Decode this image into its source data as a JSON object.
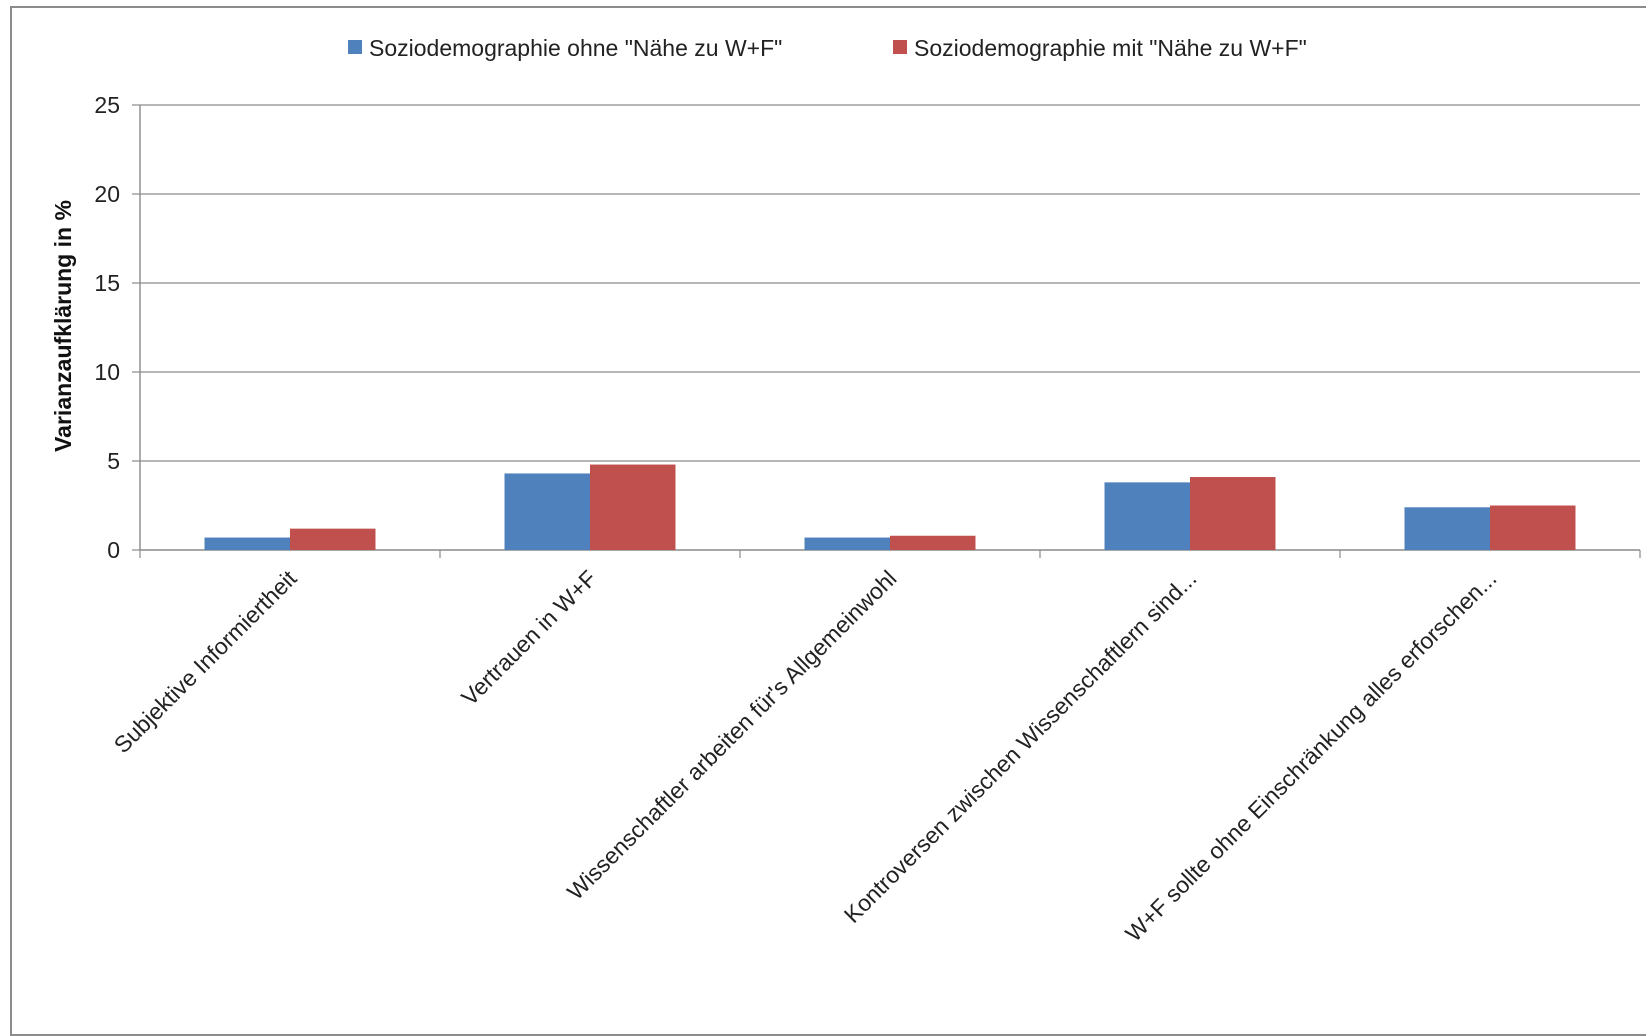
{
  "chart_data": {
    "type": "bar",
    "title": "",
    "xlabel": "",
    "ylabel": "Varianzaufklärung in %",
    "ylim": [
      0,
      25
    ],
    "yticks": [
      0,
      5,
      10,
      15,
      20,
      25
    ],
    "grid": true,
    "legend_position": "top",
    "categories": [
      "Subjektive Informiertheit",
      "Vertrauen in W+F",
      "Wissenschaftler arbeiten für's Allgemeinwohl",
      "Kontroversen zwischen Wissenschaftlern sind...",
      "W+F sollte ohne Einschränkung alles erforschen..."
    ],
    "series": [
      {
        "name": "Soziodemographie ohne \"Nähe zu W+F\"",
        "color": "#4f81bd",
        "values": [
          0.7,
          4.3,
          0.7,
          3.8,
          2.4
        ]
      },
      {
        "name": "Soziodemographie mit \"Nähe zu W+F\"",
        "color": "#c0504d",
        "values": [
          1.2,
          4.8,
          0.8,
          4.1,
          2.5
        ]
      }
    ]
  }
}
